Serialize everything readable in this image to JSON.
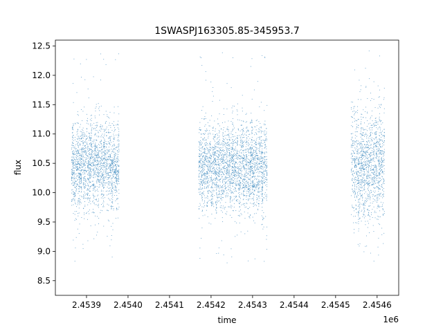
{
  "chart_data": {
    "type": "scatter",
    "title": "1SWASPJ163305.85-345953.7",
    "xlabel": "time",
    "ylabel": "flux",
    "x_offset_label": "1e6",
    "xlim": [
      2453825,
      2454652
    ],
    "ylim": [
      8.25,
      12.6
    ],
    "x_ticks": [
      2453900,
      2454000,
      2454100,
      2454200,
      2454300,
      2454400,
      2454500,
      2454600
    ],
    "x_tick_labels": [
      "2.4539",
      "2.4540",
      "2.4541",
      "2.4542",
      "2.4543",
      "2.4544",
      "2.4545",
      "2.4546"
    ],
    "y_ticks": [
      8.5,
      9.0,
      9.5,
      10.0,
      10.5,
      11.0,
      11.5,
      12.0,
      12.5
    ],
    "y_tick_labels": [
      "8.5",
      "9.0",
      "9.5",
      "10.0",
      "10.5",
      "11.0",
      "11.5",
      "12.0",
      "12.5"
    ],
    "grid": false,
    "marker_color": "#1f77b4",
    "observing_seasons": [
      {
        "x_range": [
          2453863,
          2453978
        ],
        "flux_center": 10.45,
        "flux_spread": 0.35
      },
      {
        "x_range": [
          2454170,
          2454335
        ],
        "flux_center": 10.42,
        "flux_spread": 0.35
      },
      {
        "x_range": [
          2454537,
          2454618
        ],
        "flux_center": 10.45,
        "flux_spread": 0.45
      }
    ]
  }
}
